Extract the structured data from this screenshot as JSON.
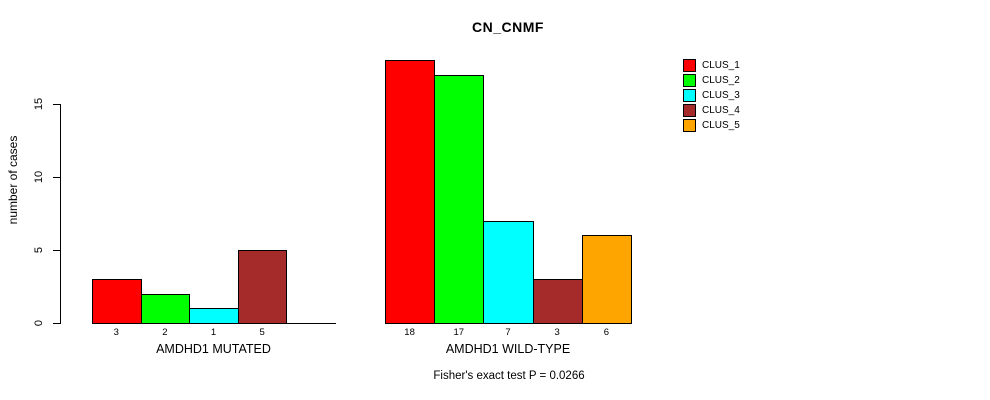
{
  "chart_data": {
    "type": "bar",
    "title": "CN_CNMF",
    "ylabel": "number of cases",
    "xlabel": "",
    "ylim": [
      0,
      18.7
    ],
    "yticks": [
      0,
      5,
      10,
      15
    ],
    "grid": false,
    "legend_position": "top-right",
    "cluster_colors": [
      "#FF0000",
      "#00FF00",
      "#00FFFF",
      "#A52A2A",
      "#FFA500"
    ],
    "legend": [
      {
        "label": "CLUS_1",
        "color": "#FF0000"
      },
      {
        "label": "CLUS_2",
        "color": "#00FF00"
      },
      {
        "label": "CLUS_3",
        "color": "#00FFFF"
      },
      {
        "label": "CLUS_4",
        "color": "#A52A2A"
      },
      {
        "label": "CLUS_5",
        "color": "#FFA500"
      }
    ],
    "groups": [
      {
        "label": "AMDHD1 MUTATED",
        "categories": [
          "CLUS_1",
          "CLUS_2",
          "CLUS_3",
          "CLUS_4",
          "CLUS_5"
        ],
        "values": [
          3,
          2,
          1,
          5,
          0
        ],
        "value_labels": [
          "3",
          "2",
          "1",
          "5",
          ""
        ]
      },
      {
        "label": "AMDHD1 WILD-TYPE",
        "categories": [
          "CLUS_1",
          "CLUS_2",
          "CLUS_3",
          "CLUS_4",
          "CLUS_5"
        ],
        "values": [
          18,
          17,
          7,
          3,
          6
        ],
        "value_labels": [
          "18",
          "17",
          "7",
          "3",
          "6"
        ]
      }
    ],
    "annotation": "Fisher's exact test P = 0.0266"
  }
}
